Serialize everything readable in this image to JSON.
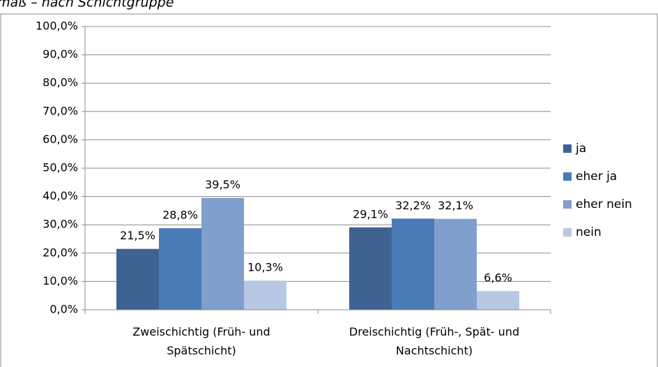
{
  "chart_data": {
    "type": "bar",
    "title": "maß – nach Schichtgruppe",
    "categories": [
      "Zweischichtig (Früh- und\nSpätschicht)",
      "Dreischichtig (Früh-, Spät- und\nNachtschicht)"
    ],
    "series": [
      {
        "name": "ja",
        "color": "#3e6292",
        "values": [
          21.5,
          29.1
        ],
        "value_labels": [
          "21,5%",
          "29,1%"
        ]
      },
      {
        "name": "eher ja",
        "color": "#4a7bb6",
        "values": [
          28.8,
          32.2
        ],
        "value_labels": [
          "28,8%",
          "32,2%"
        ]
      },
      {
        "name": "eher nein",
        "color": "#809fcd",
        "values": [
          39.5,
          32.1
        ],
        "value_labels": [
          "39,5%",
          "32,1%"
        ]
      },
      {
        "name": "nein",
        "color": "#b8c7e3",
        "values": [
          10.3,
          6.6
        ],
        "value_labels": [
          "10,3%",
          "6,6%"
        ]
      }
    ],
    "ylim": [
      0,
      100
    ],
    "yticks": [
      {
        "value": 0,
        "label": "0,0%"
      },
      {
        "value": 10,
        "label": "10,0%"
      },
      {
        "value": 20,
        "label": "20,0%"
      },
      {
        "value": 30,
        "label": "30,0%"
      },
      {
        "value": 40,
        "label": "40,0%"
      },
      {
        "value": 50,
        "label": "50,0%"
      },
      {
        "value": 60,
        "label": "60,0%"
      },
      {
        "value": 70,
        "label": "70,0%"
      },
      {
        "value": 80,
        "label": "80,0%"
      },
      {
        "value": 90,
        "label": "90,0%"
      },
      {
        "value": 100,
        "label": "100,0%"
      }
    ],
    "grid": true,
    "legend": "right"
  }
}
